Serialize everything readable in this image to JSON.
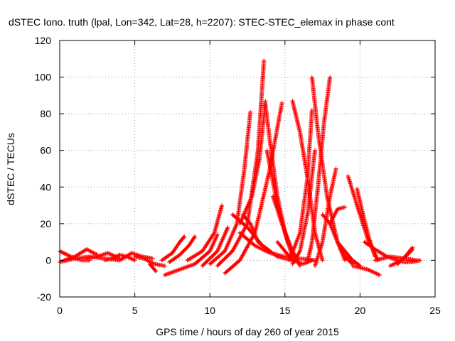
{
  "chart_data": {
    "type": "scatter",
    "title": "dSTEC Iono. truth (lpal, Lon=342, Lat=28, h=2207): STEC-STEC_elemax in phase cont",
    "xlabel": "GPS time / hours of day 260 of year 2015",
    "ylabel": "dSTEC  / TECUs",
    "xlim": [
      0,
      25
    ],
    "ylim": [
      -20,
      120
    ],
    "xticks": [
      0,
      5,
      10,
      15,
      20,
      25
    ],
    "yticks": [
      -20,
      0,
      20,
      40,
      60,
      80,
      100,
      120
    ],
    "grid": true,
    "marker": "+",
    "color": "#ff0000",
    "series": [
      {
        "x": [
          0.0,
          0.5,
          1.0,
          1.5,
          2.0
        ],
        "y": [
          5,
          3,
          1,
          0,
          0
        ]
      },
      {
        "x": [
          0.0,
          1.0,
          2.0,
          3.0,
          4.0
        ],
        "y": [
          -1,
          1,
          2,
          1,
          0
        ]
      },
      {
        "x": [
          0.3,
          1.0,
          1.8,
          2.5
        ],
        "y": [
          0,
          2,
          6,
          3
        ]
      },
      {
        "x": [
          1.8,
          2.5,
          3.2,
          4.0
        ],
        "y": [
          1,
          2,
          4,
          1
        ]
      },
      {
        "x": [
          3.0,
          3.5,
          4.0,
          4.5,
          5.0
        ],
        "y": [
          0,
          1,
          3,
          2,
          0
        ]
      },
      {
        "x": [
          4.0,
          4.8,
          5.5,
          6.2
        ],
        "y": [
          0,
          4,
          2,
          1
        ]
      },
      {
        "x": [
          5.0,
          5.6,
          6.3,
          7.0
        ],
        "y": [
          2,
          1,
          -2,
          -3
        ]
      },
      {
        "x": [
          6.0,
          6.2,
          6.4
        ],
        "y": [
          -2,
          -4,
          -6
        ]
      },
      {
        "x": [
          6.8,
          7.5,
          8.0,
          8.3
        ],
        "y": [
          0,
          4,
          10,
          13
        ]
      },
      {
        "x": [
          7.3,
          8.0,
          8.6,
          9.0
        ],
        "y": [
          -1,
          3,
          8,
          13
        ]
      },
      {
        "x": [
          7.0,
          8.0,
          9.0,
          10.0,
          10.5
        ],
        "y": [
          -8,
          -5,
          -2,
          5,
          14
        ]
      },
      {
        "x": [
          8.5,
          9.5,
          10.3,
          10.8
        ],
        "y": [
          0,
          5,
          15,
          30
        ]
      },
      {
        "x": [
          9.5,
          10.5,
          11.2
        ],
        "y": [
          -3,
          5,
          18
        ]
      },
      {
        "x": [
          10.0,
          11.0,
          11.8,
          12.3,
          12.7
        ],
        "y": [
          -2,
          5,
          20,
          50,
          81
        ]
      },
      {
        "x": [
          10.5,
          11.5,
          12.5,
          13.2,
          13.6
        ],
        "y": [
          -3,
          5,
          20,
          60,
          109
        ]
      },
      {
        "x": [
          12.0,
          12.8,
          13.3,
          13.7
        ],
        "y": [
          20,
          35,
          55,
          87
        ]
      },
      {
        "x": [
          11.0,
          12.0,
          13.0,
          14.0,
          14.8
        ],
        "y": [
          -7,
          0,
          15,
          50,
          86
        ]
      },
      {
        "x": [
          11.5,
          12.5,
          13.5,
          14.5,
          15.5
        ],
        "y": [
          25,
          18,
          8,
          2,
          0
        ]
      },
      {
        "x": [
          12.0,
          13.0,
          14.0,
          15.0,
          16.0,
          17.0
        ],
        "y": [
          15,
          8,
          4,
          2,
          1,
          0
        ]
      },
      {
        "x": [
          12.2,
          12.7,
          13.2,
          14.0
        ],
        "y": [
          25,
          20,
          10,
          5
        ]
      },
      {
        "x": [
          13.7,
          14.0,
          14.5,
          15.0,
          15.5
        ],
        "y": [
          85,
          65,
          35,
          15,
          2
        ]
      },
      {
        "x": [
          13.8,
          14.5,
          15.2,
          15.8
        ],
        "y": [
          60,
          30,
          10,
          0
        ]
      },
      {
        "x": [
          14.2,
          14.8,
          15.5,
          16.0
        ],
        "y": [
          35,
          20,
          5,
          -3
        ]
      },
      {
        "x": [
          14.5,
          15.5,
          16.2,
          16.8
        ],
        "y": [
          10,
          0,
          -2,
          0
        ]
      },
      {
        "x": [
          15.5,
          16.0,
          16.5,
          17.0,
          17.5
        ],
        "y": [
          87,
          70,
          45,
          15,
          0
        ]
      },
      {
        "x": [
          15.3,
          16.0,
          16.5,
          16.8
        ],
        "y": [
          0,
          15,
          45,
          82
        ]
      },
      {
        "x": [
          15.5,
          16.0,
          16.5,
          17.0
        ],
        "y": [
          -2,
          5,
          25,
          60
        ]
      },
      {
        "x": [
          16.5,
          16.8,
          17.2,
          17.6,
          18.0
        ],
        "y": [
          -1,
          10,
          40,
          75,
          100
        ]
      },
      {
        "x": [
          16.8,
          17.2,
          17.8,
          18.5,
          19.0
        ],
        "y": [
          100,
          70,
          35,
          10,
          0
        ]
      },
      {
        "x": [
          17.0,
          17.5,
          18.0,
          18.4
        ],
        "y": [
          -3,
          10,
          35,
          50
        ]
      },
      {
        "x": [
          17.5,
          18.0,
          18.5,
          19.0,
          19.5
        ],
        "y": [
          25,
          20,
          10,
          2,
          -2
        ]
      },
      {
        "x": [
          18.0,
          18.5,
          19.0
        ],
        "y": [
          20,
          28,
          29
        ]
      },
      {
        "x": [
          18.5,
          19.0,
          19.5,
          20.0
        ],
        "y": [
          10,
          5,
          0,
          -3
        ]
      },
      {
        "x": [
          19.2,
          19.8,
          20.5,
          21.2
        ],
        "y": [
          46,
          30,
          12,
          0
        ]
      },
      {
        "x": [
          19.5,
          20.5,
          21.3
        ],
        "y": [
          -3,
          -5,
          -8
        ]
      },
      {
        "x": [
          19.8,
          20.2,
          20.6,
          21.0
        ],
        "y": [
          39,
          25,
          12,
          2
        ]
      },
      {
        "x": [
          20.3,
          21.0,
          21.8,
          22.5
        ],
        "y": [
          10,
          6,
          2,
          0
        ]
      },
      {
        "x": [
          21.0,
          22.0,
          23.0,
          23.8
        ],
        "y": [
          0,
          2,
          1,
          0
        ]
      },
      {
        "x": [
          22.0,
          22.8,
          23.5
        ],
        "y": [
          -3,
          0,
          6
        ]
      },
      {
        "x": [
          22.5,
          23.0,
          23.5
        ],
        "y": [
          -2,
          2,
          7
        ]
      },
      {
        "x": [
          22.8,
          23.4,
          24.0
        ],
        "y": [
          -1,
          -1,
          0
        ]
      }
    ]
  }
}
